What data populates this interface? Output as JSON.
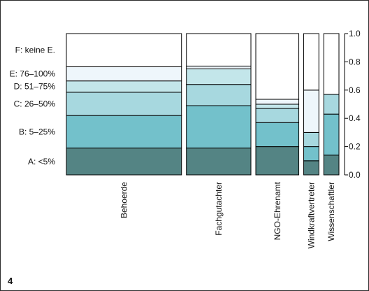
{
  "figure_number": "4",
  "chart_data": {
    "type": "mosaic",
    "categories": [
      "Behoerde",
      "Fachgutachter",
      "NGO-Ehrenamt",
      "Windkraftvertreter",
      "Wissenschaftler"
    ],
    "category_shares": [
      0.455,
      0.255,
      0.17,
      0.06,
      0.06
    ],
    "levels": [
      "A: <5%",
      "B: 5–25%",
      "C: 26–50%",
      "D: 51–75%",
      "E: 76–100%",
      "F: keine E."
    ],
    "level_colors": [
      "#548484",
      "#73c1cb",
      "#a7d8df",
      "#c3e6ea",
      "#eef6fb",
      "#ffffff"
    ],
    "proportions": [
      [
        0.19,
        0.23,
        0.165,
        0.08,
        0.1,
        0.235
      ],
      [
        0.19,
        0.3,
        0.15,
        0.11,
        0.02,
        0.23
      ],
      [
        0.2,
        0.17,
        0.1,
        0.03,
        0.035,
        0.465
      ],
      [
        0.1,
        0.1,
        0.1,
        0.0,
        0.3,
        0.4
      ],
      [
        0.14,
        0.29,
        0.14,
        0.0,
        0.0,
        0.43
      ]
    ],
    "right_axis": {
      "ticks": [
        "0.0",
        "0.2",
        "0.4",
        "0.6",
        "0.8",
        "1.0"
      ],
      "values": [
        0.0,
        0.2,
        0.4,
        0.6,
        0.8,
        1.0
      ],
      "ylim": [
        0,
        1
      ]
    }
  }
}
